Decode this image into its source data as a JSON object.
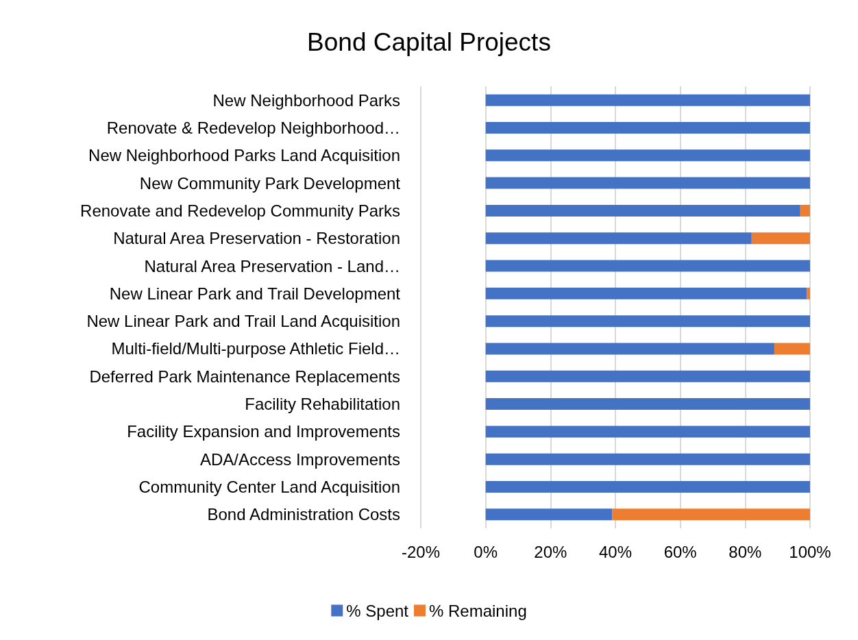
{
  "chart_data": {
    "type": "bar",
    "title": "Bond Capital Projects",
    "orientation": "horizontal",
    "stacked": true,
    "categories": [
      "New Neighborhood Parks",
      "Renovate & Redevelop Neighborhood…",
      "New Neighborhood Parks Land Acquisition",
      "New Community Park Development",
      "Renovate and Redevelop Community Parks",
      "Natural Area Preservation - Restoration",
      "Natural Area Preservation - Land…",
      "New Linear Park and Trail Development",
      "New Linear Park and Trail Land Acquisition",
      "Multi-field/Multi-purpose Athletic Field…",
      "Deferred Park Maintenance Replacements",
      "Facility Rehabilitation",
      "Facility Expansion and Improvements",
      "ADA/Access Improvements",
      "Community Center Land Acquisition",
      "Bond Administration Costs"
    ],
    "series": [
      {
        "name": "% Spent",
        "color": "#4472c4",
        "values": [
          100,
          100,
          100,
          100,
          97,
          82,
          100,
          99,
          100,
          89,
          100,
          100,
          100,
          100,
          100,
          39
        ]
      },
      {
        "name": "% Remaining",
        "color": "#ed7d31",
        "values": [
          0,
          0,
          0,
          0,
          3,
          18,
          0,
          1,
          0,
          11,
          0,
          0,
          0,
          0,
          0,
          61
        ]
      }
    ],
    "xlim": [
      -20,
      100
    ],
    "xticks": [
      {
        "value": -20,
        "label": "-20%"
      },
      {
        "value": 0,
        "label": "0%"
      },
      {
        "value": 20,
        "label": "20%"
      },
      {
        "value": 40,
        "label": "40%"
      },
      {
        "value": 60,
        "label": "60%"
      },
      {
        "value": 80,
        "label": "80%"
      },
      {
        "value": 100,
        "label": "100%"
      }
    ],
    "grid": "x",
    "legend": "bottom"
  }
}
